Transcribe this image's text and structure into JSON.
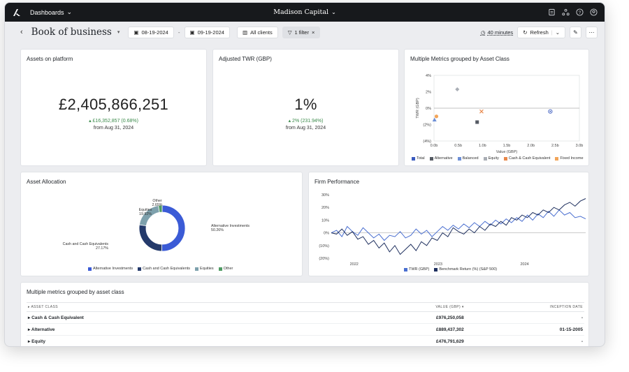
{
  "topbar": {
    "dashboards_label": "Dashboards",
    "firm_name": "Madison Capital",
    "icons": [
      "export-icon",
      "share-icon",
      "help-icon",
      "user-icon"
    ]
  },
  "toolbar": {
    "title": "Book of business",
    "start_date": "08-19-2024",
    "end_date": "09-19-2024",
    "clients_label": "All clients",
    "filter_label": "1 filter",
    "refresh_interval": "40 minutes",
    "refresh_label": "Refresh"
  },
  "assets": {
    "title": "Assets on platform",
    "value": "£2,405,866,251",
    "delta": "£16,352,857 (0.68%)",
    "from": "from Aug 31, 2024"
  },
  "twr": {
    "title": "Adjusted TWR (GBP)",
    "value": "1%",
    "delta": "2% (231.94%)",
    "from": "from Aug 31, 2024"
  },
  "scatter": {
    "title": "Multiple Metrics grouped by Asset Class",
    "chart_data": {
      "type": "scatter",
      "xlabel": "Value (GBP)",
      "ylabel": "TWR (GBP)",
      "xlim": [
        0,
        3.0
      ],
      "ylim": [
        -4,
        4
      ],
      "x_ticks": [
        "0.0b",
        "0.5b",
        "1.0b",
        "1.5b",
        "2.0b",
        "2.5b",
        "3.0b"
      ],
      "y_ticks": [
        "4%",
        "2%",
        "0%",
        "(2%)",
        "(4%)"
      ],
      "series": [
        {
          "name": "Total",
          "x": 2.4,
          "y": -0.4,
          "color": "#3b5bbf"
        },
        {
          "name": "Alternative",
          "x": 0.89,
          "y": -1.7,
          "color": "#555a63"
        },
        {
          "name": "Balanced",
          "x": 0.01,
          "y": -1.4,
          "color": "#6d8fd6"
        },
        {
          "name": "Equity",
          "x": 0.48,
          "y": 2.3,
          "color": "#a9aeb5"
        },
        {
          "name": "Cash & Cash Equivalent",
          "x": 0.98,
          "y": -0.4,
          "color": "#e8874a"
        },
        {
          "name": "Fixed Income",
          "x": 0.05,
          "y": -1.0,
          "color": "#f2a55a"
        }
      ]
    }
  },
  "allocation": {
    "title": "Asset Allocation",
    "chart_data": {
      "type": "pie",
      "labels": [
        "Alternative Investments",
        "Cash and Cash Equivalents",
        "Equities",
        "Other"
      ],
      "values": [
        50.26,
        27.17,
        19.92,
        2.65
      ],
      "value_labels": [
        "50.26%",
        "27.17%",
        "19.92%",
        "2.65%"
      ],
      "colors": [
        "#3b5bd6",
        "#243a6b",
        "#7ea1ad",
        "#4f9b63"
      ]
    }
  },
  "performance": {
    "title": "Firm Performance",
    "chart_data": {
      "type": "line",
      "y_ticks": [
        "30%",
        "20%",
        "10%",
        "0%",
        "(10%)",
        "(20%)"
      ],
      "ylim": [
        -20,
        30
      ],
      "x_ticks": [
        "2022",
        "2023",
        "2024"
      ],
      "series": [
        {
          "name": "TWR (GBP)",
          "color": "#4a6fd0",
          "values": [
            0,
            2,
            -3,
            5,
            1,
            -2,
            4,
            0,
            -4,
            -1,
            -6,
            -2,
            -3,
            1,
            -4,
            -2,
            3,
            -1,
            2,
            -3,
            1,
            5,
            2,
            6,
            3,
            7,
            4,
            8,
            5,
            9,
            6,
            10,
            7,
            11,
            8,
            12,
            9,
            14,
            10,
            15,
            12,
            17,
            13,
            18,
            14,
            16,
            12,
            13,
            11
          ]
        },
        {
          "name": "Benchmark Return (%) (S&P 500)",
          "color": "#1e2f5e",
          "values": [
            0,
            -1,
            3,
            -2,
            1,
            -5,
            -3,
            -9,
            -6,
            -12,
            -8,
            -15,
            -10,
            -17,
            -13,
            -9,
            -14,
            -7,
            -10,
            -4,
            -6,
            0,
            -3,
            4,
            1,
            -1,
            3,
            0,
            5,
            2,
            7,
            5,
            9,
            6,
            12,
            10,
            14,
            12,
            16,
            14,
            18,
            16,
            20,
            18,
            22,
            24,
            21,
            25,
            27
          ]
        }
      ]
    }
  },
  "table": {
    "title": "Multiple metrics grouped by asset class",
    "headers": {
      "asset_class": "ASSET CLASS",
      "value": "VALUE (GBP)",
      "inception": "INCEPTION DATE"
    },
    "rows": [
      {
        "name": "Cash & Cash Equivalent",
        "value": "£976,250,058",
        "inception": "-"
      },
      {
        "name": "Alternative",
        "value": "£889,437,302",
        "inception": "01-15-2005"
      },
      {
        "name": "Equity",
        "value": "£476,791,629",
        "inception": "-"
      }
    ]
  }
}
